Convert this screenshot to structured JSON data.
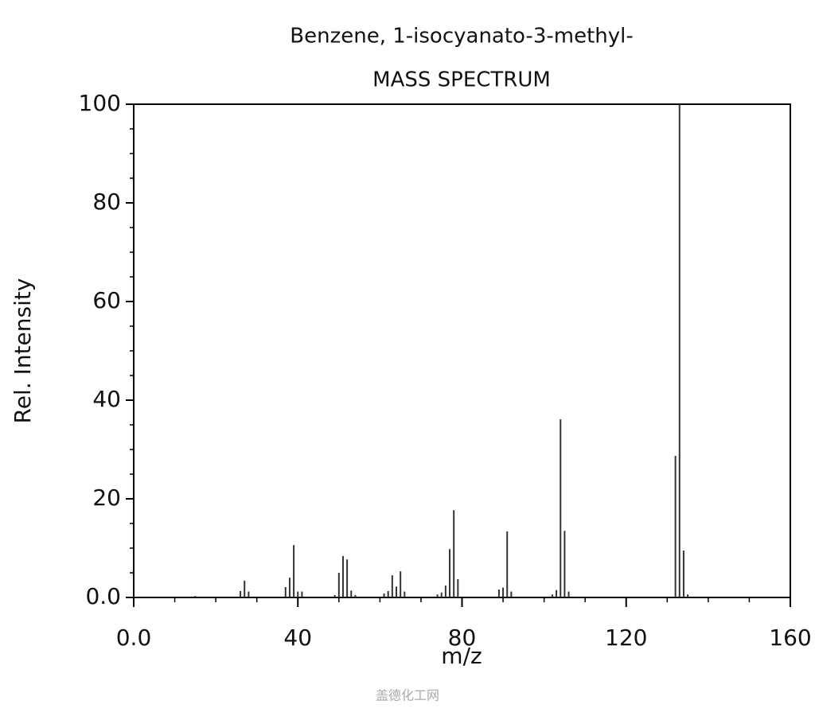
{
  "chart_data": {
    "type": "stem",
    "title": "Benzene, 1-isocyanato-3-methyl-",
    "subtitle": "MASS SPECTRUM",
    "x_label": "m/z",
    "y_label": "Rel. Intensity",
    "color": "#333333",
    "x": [
      15,
      26,
      27,
      28,
      37,
      38,
      39,
      40,
      41,
      49,
      50,
      51,
      52,
      53,
      54,
      61,
      62,
      63,
      64,
      65,
      66,
      74,
      75,
      76,
      77,
      78,
      79,
      89,
      90,
      91,
      92,
      102,
      103,
      104,
      105,
      106,
      132,
      133,
      134,
      135
    ],
    "values": [
      0.3,
      1.3,
      3.4,
      1.2,
      2.1,
      4,
      10.6,
      1.2,
      1.2,
      0.5,
      5,
      8.4,
      7.7,
      1.4,
      0.5,
      0.8,
      1.3,
      4.5,
      2.2,
      5.3,
      1.2,
      0.6,
      1.0,
      2.4,
      9.8,
      17.7,
      3.7,
      1.6,
      2,
      13.4,
      1.2,
      0.6,
      1.5,
      36.1,
      13.5,
      1.2,
      28.7,
      100,
      9.5,
      0.6
    ],
    "xlim": [
      0,
      160
    ],
    "xticks": [
      {
        "value": 0,
        "label": "0.0"
      },
      40,
      80,
      120,
      160
    ],
    "ylim": [
      0,
      100
    ],
    "yticks": [
      {
        "value": 0,
        "label": "0.0"
      },
      20,
      40,
      60,
      80,
      100
    ]
  },
  "watermark": "盖德化工网"
}
